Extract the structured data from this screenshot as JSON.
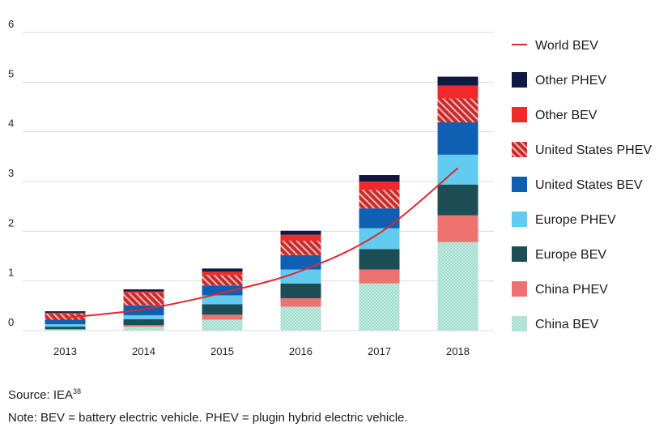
{
  "chart_data": {
    "type": "bar",
    "stacked": true,
    "categories": [
      "2013",
      "2014",
      "2015",
      "2016",
      "2017",
      "2018"
    ],
    "ylim": [
      0,
      6
    ],
    "yticks": [
      "0",
      "1",
      "2",
      "3",
      "4",
      "5",
      "6"
    ],
    "grid": true,
    "legend_position": "right",
    "series": [
      {
        "name": "China BEV",
        "color": "#9fdccd",
        "pattern": "dots",
        "values": [
          0.02,
          0.08,
          0.22,
          0.48,
          0.95,
          1.78
        ]
      },
      {
        "name": "China PHEV",
        "color": "#ee7370",
        "pattern": "solid",
        "values": [
          0.01,
          0.03,
          0.1,
          0.17,
          0.28,
          0.54
        ]
      },
      {
        "name": "Europe BEV",
        "color": "#1d4e55",
        "pattern": "solid",
        "values": [
          0.05,
          0.12,
          0.21,
          0.3,
          0.41,
          0.62
        ]
      },
      {
        "name": "Europe PHEV",
        "color": "#62cbf0",
        "pattern": "solid",
        "values": [
          0.05,
          0.08,
          0.18,
          0.28,
          0.42,
          0.6
        ]
      },
      {
        "name": "United States BEV",
        "color": "#0f5fb2",
        "pattern": "solid",
        "values": [
          0.09,
          0.2,
          0.2,
          0.29,
          0.4,
          0.65
        ]
      },
      {
        "name": "United States PHEV",
        "color": "#c72c2c",
        "pattern": "hatch",
        "values": [
          0.12,
          0.25,
          0.21,
          0.29,
          0.37,
          0.48
        ]
      },
      {
        "name": "Other BEV",
        "color": "#ee2a2a",
        "pattern": "solid",
        "values": [
          0.02,
          0.03,
          0.07,
          0.12,
          0.17,
          0.26
        ]
      },
      {
        "name": "Other PHEV",
        "color": "#101844",
        "pattern": "solid",
        "values": [
          0.03,
          0.04,
          0.06,
          0.08,
          0.13,
          0.18
        ]
      }
    ],
    "line": {
      "name": "World BEV",
      "color": "#e0262e",
      "values": [
        0.26,
        0.43,
        0.76,
        1.2,
        1.96,
        3.27
      ]
    }
  },
  "footer": {
    "source_label": "Source: IEA",
    "source_ref": "38",
    "note": "Note: BEV = battery electric vehicle. PHEV = plugin hybrid electric vehicle."
  }
}
